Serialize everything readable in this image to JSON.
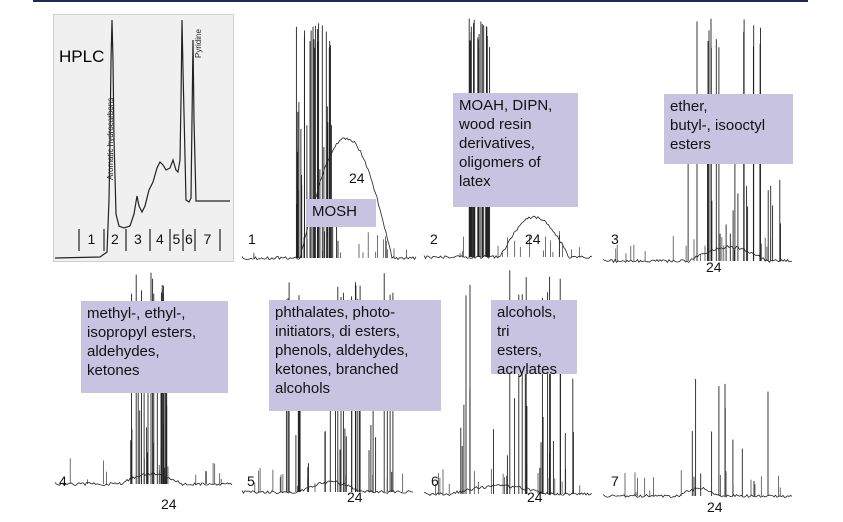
{
  "hplc": {
    "title": "HPLC",
    "peak_labels": [
      "Aromatic hydrocarbons",
      "Pyridine"
    ],
    "fractions": [
      "1",
      "2",
      "3",
      "4",
      "5",
      "6",
      "7"
    ]
  },
  "panels": [
    {
      "number": "1",
      "marker": "24",
      "box": [
        "MOSH"
      ]
    },
    {
      "number": "2",
      "marker": "24",
      "box": [
        "MOAH, DIPN,",
        "wood resin",
        "derivatives,",
        "oligomers of",
        "latex"
      ]
    },
    {
      "number": "3",
      "marker": "24",
      "box": [
        "ether,",
        "butyl-, isooctyl",
        "esters"
      ]
    },
    {
      "number": "4",
      "marker": "24",
      "box": [
        "methyl-, ethyl-,",
        "isopropyl esters,",
        "aldehydes,",
        "ketones"
      ]
    },
    {
      "number": "5",
      "marker": "24",
      "box": [
        "phthalates, photo-",
        "initiators, di esters,",
        "phenols, aldehydes,",
        "ketones, branched",
        "alcohols"
      ]
    },
    {
      "number": "6",
      "marker": "24",
      "box": [
        "alcohols,",
        "tri",
        "esters,",
        "acrylates"
      ]
    },
    {
      "number": "7",
      "marker": "24",
      "box": []
    }
  ],
  "chart_data": {
    "type": "line",
    "title": "",
    "xlabel": "",
    "ylabel": "",
    "description_free": true,
    "hplc_fractions": [
      "1",
      "2",
      "3",
      "4",
      "5",
      "6",
      "7"
    ],
    "chromatograms": [
      {
        "fraction": "1",
        "retention_marker": "24",
        "annotation": "MOSH"
      },
      {
        "fraction": "2",
        "retention_marker": "24",
        "annotation": "MOAH, DIPN, wood resin derivatives, oligomers of latex"
      },
      {
        "fraction": "3",
        "retention_marker": "24",
        "annotation": "ether, butyl-, isooctyl esters"
      },
      {
        "fraction": "4",
        "retention_marker": "24",
        "annotation": "methyl-, ethyl-, isopropyl esters, aldehydes, ketones"
      },
      {
        "fraction": "5",
        "retention_marker": "24",
        "annotation": "phthalates, photo-initiators, di esters, phenols, aldehydes, ketones, branched alcohols"
      },
      {
        "fraction": "6",
        "retention_marker": "24",
        "annotation": "alcohols, tri esters, acrylates"
      },
      {
        "fraction": "7",
        "retention_marker": "24",
        "annotation": ""
      }
    ]
  }
}
